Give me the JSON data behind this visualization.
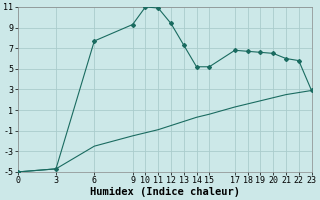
{
  "xlabel": "Humidex (Indice chaleur)",
  "background_color": "#cce8e8",
  "grid_color": "#aacccc",
  "line_color": "#1a6b60",
  "upper_x": [
    0,
    3,
    6,
    9,
    10,
    11,
    12,
    13,
    14,
    15,
    17,
    18,
    19,
    20,
    21,
    22,
    23
  ],
  "upper_y": [
    -5.0,
    -4.7,
    7.7,
    9.3,
    11.0,
    10.9,
    9.4,
    7.3,
    5.2,
    5.2,
    6.8,
    6.7,
    6.6,
    6.5,
    6.0,
    5.8,
    2.9
  ],
  "lower_x": [
    0,
    3,
    6,
    9,
    10,
    11,
    12,
    13,
    14,
    15,
    17,
    18,
    19,
    20,
    21,
    22,
    23
  ],
  "lower_y": [
    -5.0,
    -4.7,
    -2.5,
    -1.5,
    -1.2,
    -0.9,
    -0.5,
    -0.1,
    0.3,
    0.6,
    1.3,
    1.6,
    1.9,
    2.2,
    2.5,
    2.7,
    2.9
  ],
  "xlim": [
    0,
    23
  ],
  "ylim": [
    -5,
    11
  ],
  "yticks": [
    -5,
    -3,
    -1,
    1,
    3,
    5,
    7,
    9,
    11
  ],
  "xticks": [
    0,
    3,
    6,
    9,
    10,
    11,
    12,
    13,
    14,
    15,
    17,
    18,
    19,
    20,
    21,
    22,
    23
  ],
  "tick_fontsize": 6,
  "xlabel_fontsize": 7.5
}
